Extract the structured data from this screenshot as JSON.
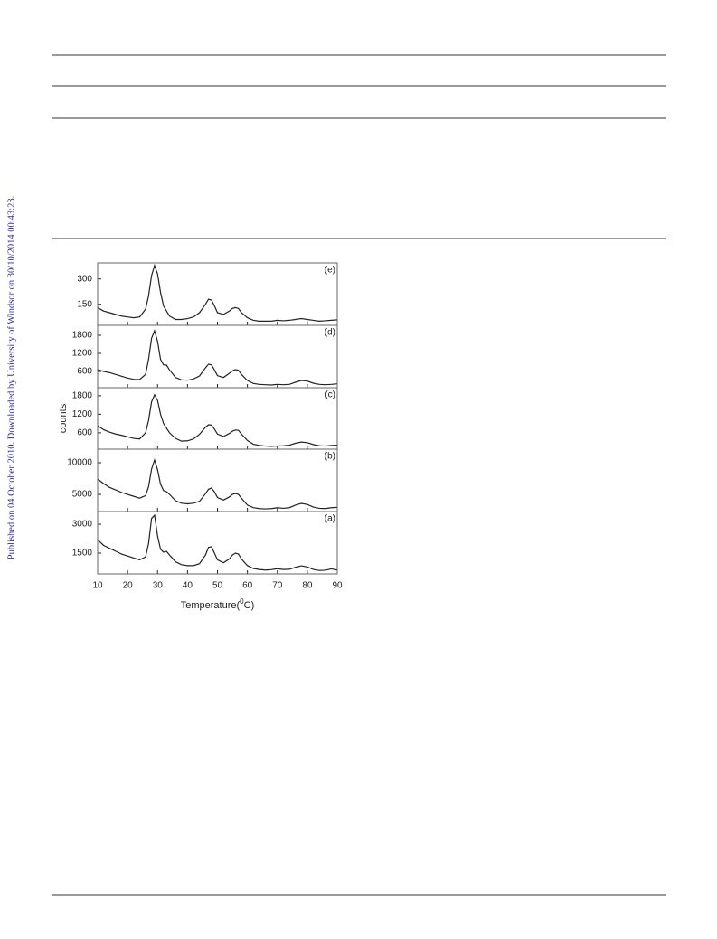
{
  "watermark": "Published on 04 October 2010. Downloaded by University of Windsor on 30/10/2014 00:43:23.",
  "chart_data": [
    {
      "type": "line",
      "panel": "(e)",
      "color": "#222222",
      "xlim": [
        10,
        90
      ],
      "ylim": [
        25,
        395
      ],
      "yticks": [
        150,
        300
      ],
      "x": [
        10,
        12,
        14,
        16,
        18,
        20,
        22,
        24,
        26,
        27,
        28,
        29,
        30,
        31,
        32,
        33,
        34,
        36,
        38,
        40,
        42,
        44,
        46,
        47,
        48,
        49,
        50,
        52,
        54,
        55,
        56,
        57,
        58,
        60,
        62,
        64,
        66,
        68,
        70,
        72,
        74,
        76,
        78,
        80,
        82,
        84,
        86,
        88,
        90
      ],
      "values": [
        130,
        110,
        100,
        90,
        80,
        75,
        70,
        75,
        120,
        200,
        320,
        380,
        330,
        220,
        140,
        110,
        80,
        60,
        60,
        65,
        75,
        100,
        150,
        180,
        175,
        140,
        100,
        90,
        110,
        125,
        130,
        125,
        100,
        70,
        55,
        50,
        50,
        50,
        55,
        52,
        55,
        60,
        65,
        60,
        55,
        50,
        52,
        55,
        58
      ]
    },
    {
      "type": "line",
      "panel": "(d)",
      "color": "#222222",
      "xlim": [
        10,
        90
      ],
      "ylim": [
        60,
        2130
      ],
      "yticks": [
        600,
        1200,
        1800
      ],
      "x": [
        10,
        12,
        14,
        16,
        18,
        20,
        22,
        24,
        26,
        27,
        28,
        29,
        30,
        31,
        32,
        33,
        34,
        36,
        38,
        40,
        42,
        44,
        46,
        47,
        48,
        49,
        50,
        52,
        54,
        55,
        56,
        57,
        58,
        60,
        62,
        64,
        66,
        68,
        70,
        72,
        74,
        76,
        78,
        80,
        82,
        84,
        86,
        88,
        90
      ],
      "values": [
        660,
        600,
        560,
        500,
        440,
        380,
        340,
        330,
        500,
        1000,
        1700,
        1950,
        1600,
        1000,
        820,
        810,
        650,
        400,
        320,
        310,
        350,
        450,
        720,
        840,
        820,
        650,
        460,
        400,
        540,
        620,
        660,
        640,
        500,
        300,
        200,
        170,
        160,
        150,
        170,
        160,
        170,
        240,
        300,
        280,
        210,
        170,
        160,
        170,
        190
      ]
    },
    {
      "type": "line",
      "panel": "(c)",
      "color": "#222222",
      "xlim": [
        10,
        90
      ],
      "ylim": [
        70,
        2060
      ],
      "yticks": [
        600,
        1200,
        1800
      ],
      "y_label": "counts",
      "x": [
        10,
        12,
        14,
        16,
        18,
        20,
        22,
        24,
        26,
        27,
        28,
        29,
        30,
        31,
        32,
        33,
        34,
        36,
        38,
        40,
        42,
        44,
        46,
        47,
        48,
        49,
        50,
        52,
        54,
        55,
        56,
        57,
        58,
        60,
        62,
        64,
        66,
        68,
        70,
        72,
        74,
        76,
        78,
        80,
        82,
        84,
        86,
        88,
        90
      ],
      "values": [
        830,
        700,
        620,
        560,
        520,
        470,
        420,
        400,
        600,
        1000,
        1600,
        1830,
        1650,
        1200,
        900,
        750,
        600,
        420,
        330,
        340,
        400,
        550,
        780,
        860,
        850,
        720,
        560,
        480,
        580,
        650,
        690,
        680,
        560,
        350,
        230,
        190,
        170,
        160,
        170,
        180,
        200,
        260,
        300,
        280,
        220,
        180,
        170,
        190,
        200
      ]
    },
    {
      "type": "line",
      "panel": "(b)",
      "color": "#222222",
      "xlim": [
        10,
        90
      ],
      "ylim": [
        2290,
        12140
      ],
      "yticks": [
        5000,
        10000
      ],
      "x": [
        10,
        12,
        14,
        16,
        18,
        20,
        22,
        24,
        26,
        27,
        28,
        29,
        30,
        31,
        32,
        33,
        34,
        36,
        38,
        40,
        42,
        44,
        46,
        47,
        48,
        49,
        50,
        52,
        54,
        55,
        56,
        57,
        58,
        60,
        62,
        64,
        66,
        68,
        70,
        72,
        74,
        76,
        78,
        80,
        82,
        84,
        86,
        88,
        90
      ],
      "values": [
        7430,
        6700,
        6100,
        5700,
        5300,
        5000,
        4700,
        4400,
        4800,
        6200,
        9000,
        10430,
        8900,
        6600,
        5600,
        5430,
        5000,
        4000,
        3600,
        3500,
        3600,
        3900,
        5100,
        5800,
        6000,
        5400,
        4500,
        4100,
        4600,
        5000,
        5140,
        5000,
        4400,
        3300,
        2900,
        2750,
        2710,
        2750,
        2900,
        2800,
        2900,
        3300,
        3570,
        3400,
        3000,
        2800,
        2750,
        2900,
        2950
      ]
    },
    {
      "type": "line",
      "panel": "(a)",
      "color": "#222222",
      "xlim": [
        10,
        90
      ],
      "ylim": [
        420,
        3660
      ],
      "yticks": [
        1500,
        3000
      ],
      "xticks": [
        10,
        20,
        30,
        40,
        50,
        60,
        70,
        80,
        90
      ],
      "x_label": [
        "Temperature(",
        "0",
        "C)"
      ],
      "x": [
        10,
        12,
        14,
        16,
        18,
        20,
        22,
        24,
        26,
        27,
        28,
        29,
        30,
        31,
        32,
        33,
        34,
        36,
        38,
        40,
        42,
        44,
        46,
        47,
        48,
        49,
        50,
        52,
        54,
        55,
        56,
        57,
        58,
        60,
        62,
        64,
        66,
        68,
        70,
        72,
        74,
        76,
        78,
        80,
        82,
        84,
        86,
        88,
        90
      ],
      "values": [
        2200,
        1900,
        1750,
        1600,
        1450,
        1350,
        1250,
        1150,
        1300,
        2000,
        3300,
        3470,
        2400,
        1700,
        1550,
        1590,
        1400,
        1050,
        900,
        850,
        850,
        950,
        1400,
        1800,
        1830,
        1500,
        1150,
        1000,
        1200,
        1400,
        1500,
        1450,
        1200,
        850,
        700,
        650,
        620,
        640,
        690,
        650,
        660,
        760,
        840,
        780,
        650,
        600,
        610,
        680,
        620
      ]
    }
  ]
}
